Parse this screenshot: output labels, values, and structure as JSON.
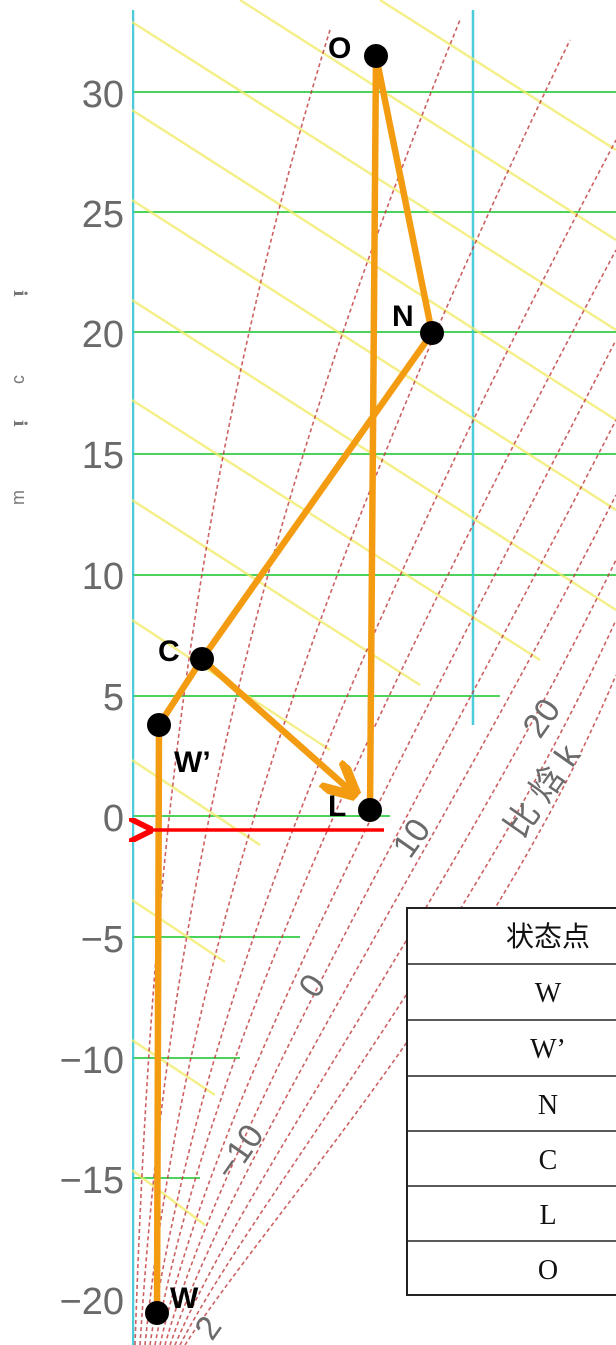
{
  "chart": {
    "y_ticks": [
      "30",
      "25",
      "20",
      "15",
      "10",
      "5",
      "0",
      "−5",
      "−10",
      "−15",
      "−20"
    ],
    "side_labels": [
      "ℹ",
      "ɔ",
      "ℹ",
      "ɯ"
    ],
    "diag_labels": [
      "20",
      "10",
      "0",
      "−10",
      "2"
    ],
    "axis_caption": "比 焓 k",
    "colors": {
      "process": "#f39c12",
      "arrow": "#ff0000",
      "point": "#000000",
      "grid_h": "#2ecc40",
      "grid_v": "#39c7d6",
      "enthalpy": "#f2ea64",
      "humidity": "#c0393b"
    }
  },
  "points": [
    {
      "id": "O",
      "label": "O"
    },
    {
      "id": "N",
      "label": "N"
    },
    {
      "id": "C",
      "label": "C"
    },
    {
      "id": "W'",
      "label": "W’"
    },
    {
      "id": "L",
      "label": "L"
    },
    {
      "id": "W",
      "label": "W"
    }
  ],
  "table": {
    "header": "状态点",
    "rows": [
      "W",
      "W’",
      "N",
      "C",
      "L",
      "O"
    ]
  }
}
